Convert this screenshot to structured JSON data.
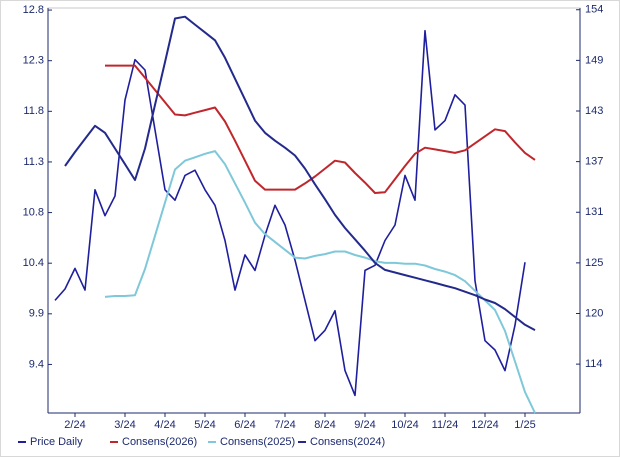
{
  "chart_data": {
    "type": "line",
    "categories": [
      null,
      null,
      null,
      "2/24",
      null,
      null,
      null,
      null,
      "3/24",
      null,
      null,
      null,
      "4/24",
      null,
      null,
      null,
      "5/24",
      null,
      null,
      null,
      "6/24",
      null,
      null,
      null,
      "7/24",
      null,
      null,
      null,
      "8/24",
      null,
      null,
      null,
      "9/24",
      null,
      null,
      null,
      "10/24",
      null,
      null,
      null,
      "11/24",
      null,
      null,
      null,
      "12/24",
      null,
      null,
      null,
      "1/25",
      null,
      null,
      null,
      null,
      null
    ],
    "series": [
      {
        "name": "Price Daily",
        "color": "#1f1f9e",
        "axis": "y",
        "values": [
          null,
          9.99,
          10.1,
          10.3,
          10.09,
          11.06,
          10.81,
          11,
          11.93,
          12.32,
          12.22,
          11.64,
          11.06,
          10.96,
          11.2,
          11.25,
          11.06,
          10.91,
          10.57,
          10.09,
          10.43,
          10.28,
          10.62,
          10.91,
          10.72,
          10.38,
          9.99,
          9.6,
          9.7,
          9.89,
          9.31,
          9.07,
          10.28,
          10.33,
          10.57,
          10.72,
          11.2,
          10.96,
          12.6,
          11.64,
          11.73,
          11.98,
          11.88,
          10.18,
          9.6,
          9.51,
          9.31,
          9.75,
          10.36,
          null,
          null,
          null,
          null,
          null
        ]
      },
      {
        "name": "Consens(2026)",
        "color": "#c0272d",
        "axis": "y2",
        "values": [
          null,
          null,
          null,
          null,
          null,
          null,
          148,
          148,
          148,
          148,
          146.6,
          145.2,
          143.8,
          142.4,
          142.3,
          142.6,
          142.9,
          143.2,
          141.6,
          139.4,
          137.1,
          134.8,
          133.8,
          133.8,
          133.8,
          133.8,
          134.5,
          135.3,
          136.2,
          137.1,
          136.9,
          135.7,
          134.6,
          133.4,
          133.5,
          135,
          136.5,
          137.9,
          138.6,
          138.4,
          138.2,
          138,
          138.3,
          139.1,
          139.9,
          140.7,
          140.5,
          139.2,
          138,
          137.2,
          null,
          null,
          null,
          null
        ]
      },
      {
        "name": "Consens(2025)",
        "color": "#7fc8d9",
        "axis": "y2",
        "values": [
          null,
          null,
          null,
          null,
          null,
          null,
          121.5,
          121.6,
          121.6,
          121.7,
          124.7,
          128.5,
          132.3,
          136.1,
          137.1,
          137.5,
          137.9,
          138.2,
          136.7,
          134.5,
          132.3,
          130,
          128.7,
          127.8,
          126.9,
          126,
          125.9,
          126.2,
          126.4,
          126.7,
          126.7,
          126.3,
          126,
          125.6,
          125.4,
          125.4,
          125.3,
          125.3,
          125.1,
          124.7,
          124.4,
          124,
          123.3,
          122.2,
          121.1,
          120,
          117.6,
          114.1,
          110.6,
          108.2,
          null,
          null,
          null,
          null
        ]
      },
      {
        "name": "Consens(2024)",
        "color": "#232a8c",
        "axis": "y2",
        "values": [
          null,
          null,
          136.5,
          138.1,
          139.6,
          141.1,
          140.3,
          138.5,
          136.7,
          134.9,
          138.5,
          143.5,
          148.4,
          153.4,
          153.6,
          152.7,
          151.8,
          150.9,
          148.9,
          146.5,
          144.1,
          141.7,
          140.3,
          139.4,
          138.6,
          137.7,
          136.2,
          134.4,
          132.7,
          130.9,
          129.4,
          128.1,
          126.8,
          125.4,
          124.6,
          124.3,
          124,
          123.7,
          123.4,
          123.1,
          122.8,
          122.5,
          122.1,
          121.7,
          121.2,
          120.8,
          120.1,
          119.2,
          118.3,
          117.7,
          null,
          null,
          null,
          null
        ]
      }
    ],
    "ylim": [
      8.9,
      12.82
    ],
    "yticks": [
      {
        "value": 12.8,
        "label": "12.8"
      },
      {
        "value": 12.31,
        "label": "12.3"
      },
      {
        "value": 11.82,
        "label": "11.8"
      },
      {
        "value": 11.33,
        "label": "11.3"
      },
      {
        "value": 10.84,
        "label": "10.8"
      },
      {
        "value": 10.35,
        "label": "10.4"
      },
      {
        "value": 9.86,
        "label": "9.9"
      },
      {
        "value": 9.37,
        "label": "9.4"
      }
    ],
    "y2lim": [
      108.2,
      154.6
    ],
    "y2ticks": [
      {
        "value": 154.4,
        "label": "154"
      },
      {
        "value": 148.6,
        "label": "149"
      },
      {
        "value": 142.8,
        "label": "143"
      },
      {
        "value": 137,
        "label": "137"
      },
      {
        "value": 131.2,
        "label": "131"
      },
      {
        "value": 125.4,
        "label": "125"
      },
      {
        "value": 119.6,
        "label": "120"
      },
      {
        "value": 113.8,
        "label": "114"
      }
    ],
    "grid": false
  }
}
